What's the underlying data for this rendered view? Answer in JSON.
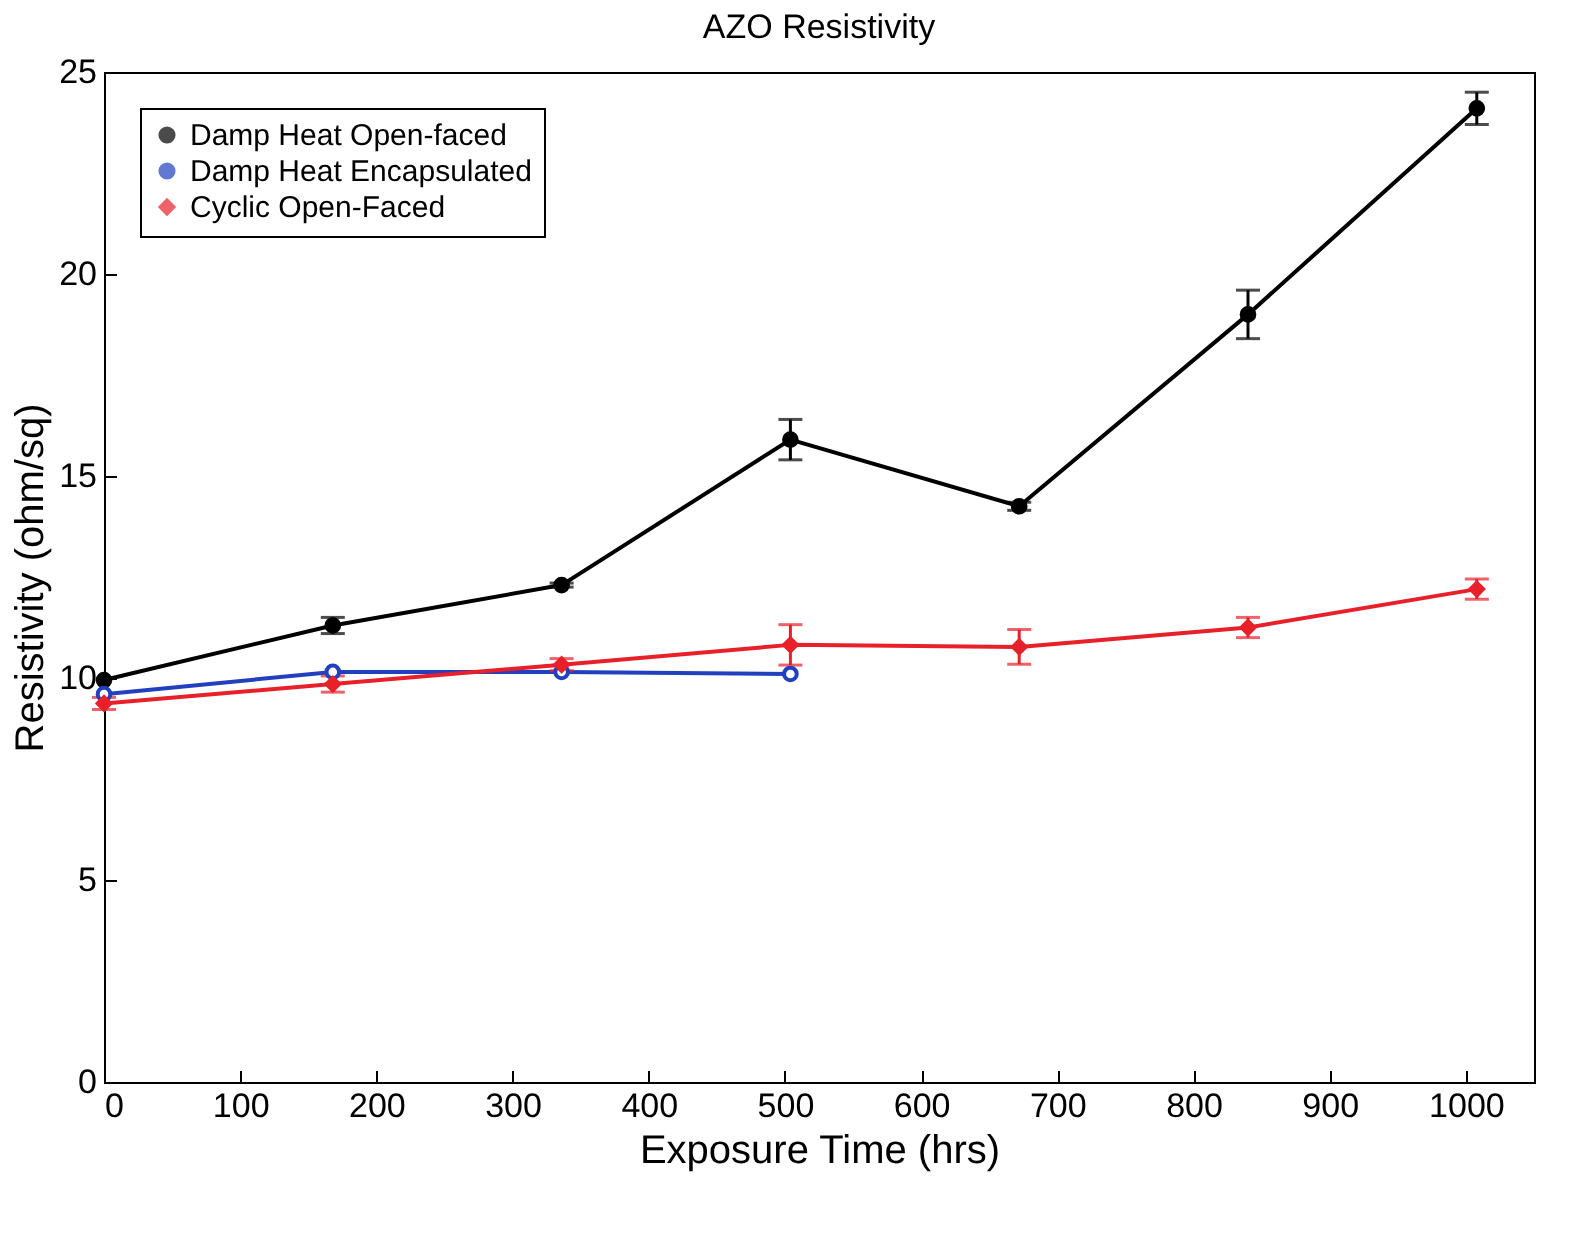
{
  "chart_data": {
    "type": "line",
    "title": "AZO Resistivity",
    "xlabel": "Exposure Time (hrs)",
    "ylabel": "Resistivity (ohm/sq)",
    "x": [
      0,
      168,
      336,
      504,
      672,
      840,
      1008
    ],
    "series": [
      {
        "name": "Damp Heat Open-faced",
        "color": "#000000",
        "marker": "circle",
        "values": [
          9.95,
          11.3,
          12.3,
          15.9,
          14.25,
          19.0,
          24.1
        ],
        "errors": [
          null,
          0.2,
          0.05,
          0.5,
          0.1,
          0.6,
          0.4
        ]
      },
      {
        "name": "Damp Heat Encapsulated",
        "color": "#2040c0",
        "marker": "circle-open",
        "x": [
          0,
          168,
          336,
          504
        ],
        "values": [
          9.6,
          10.15,
          10.15,
          10.1
        ]
      },
      {
        "name": "Cyclic Open-Faced",
        "color": "#e8202a",
        "marker": "diamond",
        "values": [
          9.37,
          9.85,
          10.33,
          10.82,
          10.77,
          11.25,
          12.2
        ],
        "errors": [
          0.15,
          0.2,
          0.15,
          0.5,
          0.43,
          0.25,
          0.25
        ]
      }
    ],
    "xlim": [
      0,
      1050
    ],
    "xticks": [
      0,
      100,
      200,
      300,
      400,
      500,
      600,
      700,
      800,
      900,
      1000
    ],
    "ylim": [
      0,
      25
    ],
    "yticks": [
      0,
      5,
      10,
      15,
      20,
      25
    ],
    "legend": "top left",
    "line_style": "solid"
  }
}
